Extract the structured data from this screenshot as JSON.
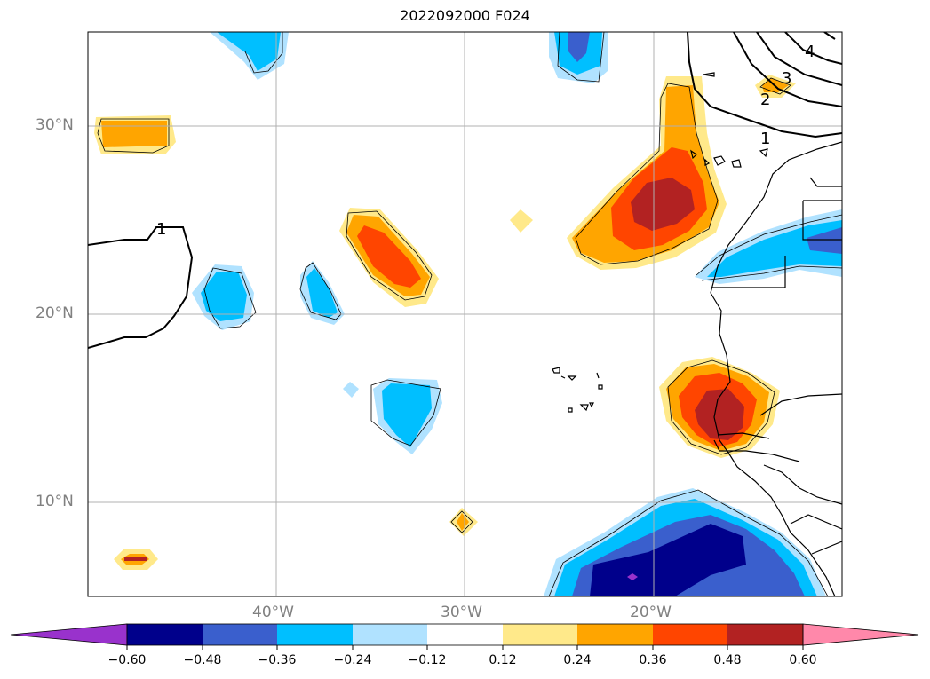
{
  "title": "2022092000 F024",
  "lat_labels": [
    "30°N",
    "20°N",
    "10°N"
  ],
  "lon_labels": [
    "40°W",
    "30°W",
    "20°W"
  ],
  "contour_labels": [
    "1",
    "1",
    "2",
    "3",
    "4"
  ],
  "colorbar": {
    "ticks": [
      "−0.60",
      "−0.48",
      "−0.36",
      "−0.24",
      "−0.12",
      "0.12",
      "0.24",
      "0.36",
      "0.48",
      "0.60"
    ],
    "colors": [
      "#9932CC",
      "#00008B",
      "#3A5FCD",
      "#00BFFF",
      "#B0E2FF",
      "#FFFFFF",
      "#FFE98A",
      "#FFA500",
      "#FF4500",
      "#B22222",
      "#FF88AA"
    ]
  }
}
